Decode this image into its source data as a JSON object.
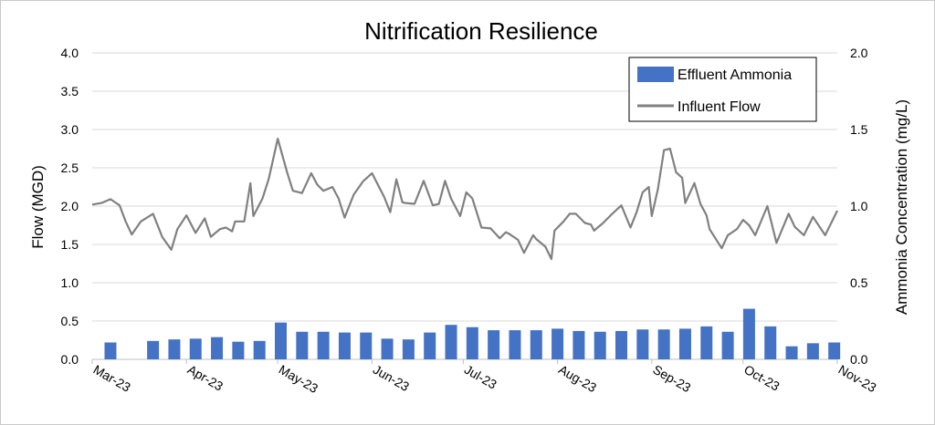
{
  "chart_data": {
    "type": "bar+line",
    "title": "Nitrification Resilience",
    "ylabel_left": "Flow (MGD)",
    "ylabel_right": "Ammonia Concentration (mg/L)",
    "ylim_left": [
      0,
      4.0
    ],
    "ylim_right": [
      0,
      2.0
    ],
    "yticks_left": [
      "0.0",
      "0.5",
      "1.0",
      "1.5",
      "2.0",
      "2.5",
      "3.0",
      "3.5",
      "4.0"
    ],
    "yticks_right": [
      "0.0",
      "0.5",
      "1.0",
      "1.5",
      "2.0"
    ],
    "x_ticks": [
      "Mar-23",
      "Apr-23",
      "May-23",
      "Jun-23",
      "Jul-23",
      "Aug-23",
      "Sep-23",
      "Oct-23",
      "Nov-23"
    ],
    "grid": true,
    "legend_position": "top-right",
    "colors": {
      "bar": "#4472C4",
      "line": "#808080",
      "grid": "#d9d9d9"
    },
    "series": [
      {
        "name": "Effluent Ammonia",
        "type": "bar",
        "axis": "right",
        "x": [
          "2023-03-07",
          "2023-03-21",
          "2023-03-28",
          "2023-04-04",
          "2023-04-11",
          "2023-04-18",
          "2023-04-25",
          "2023-05-02",
          "2023-05-09",
          "2023-05-16",
          "2023-05-23",
          "2023-05-30",
          "2023-06-06",
          "2023-06-13",
          "2023-06-20",
          "2023-06-27",
          "2023-07-04",
          "2023-07-11",
          "2023-07-18",
          "2023-07-25",
          "2023-08-01",
          "2023-08-08",
          "2023-08-15",
          "2023-08-22",
          "2023-08-29",
          "2023-09-05",
          "2023-09-12",
          "2023-09-19",
          "2023-09-26",
          "2023-10-03",
          "2023-10-10",
          "2023-10-17",
          "2023-10-24",
          "2023-10-31"
        ],
        "values": [
          0.11,
          0.12,
          0.13,
          0.135,
          0.145,
          0.115,
          0.12,
          0.24,
          0.18,
          0.18,
          0.175,
          0.175,
          0.135,
          0.13,
          0.175,
          0.225,
          0.21,
          0.19,
          0.19,
          0.19,
          0.2,
          0.185,
          0.18,
          0.185,
          0.195,
          0.195,
          0.2,
          0.215,
          0.18,
          0.33,
          0.215,
          0.085,
          0.105,
          0.11
        ]
      },
      {
        "name": "Influent Flow",
        "type": "line",
        "axis": "left",
        "x": [
          "2023-03-01",
          "2023-03-04",
          "2023-03-07",
          "2023-03-10",
          "2023-03-12",
          "2023-03-14",
          "2023-03-17",
          "2023-03-21",
          "2023-03-24",
          "2023-03-27",
          "2023-03-29",
          "2023-04-01",
          "2023-04-04",
          "2023-04-07",
          "2023-04-09",
          "2023-04-12",
          "2023-04-14",
          "2023-04-16",
          "2023-04-17",
          "2023-04-20",
          "2023-04-22",
          "2023-04-23",
          "2023-04-26",
          "2023-04-28",
          "2023-05-01",
          "2023-05-04",
          "2023-05-06",
          "2023-05-09",
          "2023-05-12",
          "2023-05-14",
          "2023-05-16",
          "2023-05-19",
          "2023-05-21",
          "2023-05-23",
          "2023-05-26",
          "2023-05-29",
          "2023-06-01",
          "2023-06-05",
          "2023-06-07",
          "2023-06-09",
          "2023-06-11",
          "2023-06-12",
          "2023-06-15",
          "2023-06-18",
          "2023-06-21",
          "2023-06-23",
          "2023-06-25",
          "2023-06-27",
          "2023-06-30",
          "2023-07-02",
          "2023-07-04",
          "2023-07-07",
          "2023-07-10",
          "2023-07-13",
          "2023-07-15",
          "2023-07-16",
          "2023-07-19",
          "2023-07-21",
          "2023-07-24",
          "2023-07-25",
          "2023-07-28",
          "2023-07-30",
          "2023-07-31",
          "2023-08-03",
          "2023-08-05",
          "2023-08-07",
          "2023-08-10",
          "2023-08-12",
          "2023-08-13",
          "2023-08-16",
          "2023-08-19",
          "2023-08-22",
          "2023-08-25",
          "2023-08-27",
          "2023-08-29",
          "2023-08-31",
          "2023-09-01",
          "2023-09-03",
          "2023-09-05",
          "2023-09-07",
          "2023-09-09",
          "2023-09-11",
          "2023-09-12",
          "2023-09-15",
          "2023-09-17",
          "2023-09-19",
          "2023-09-20",
          "2023-09-24",
          "2023-09-26",
          "2023-09-29",
          "2023-10-01",
          "2023-10-03",
          "2023-10-05",
          "2023-10-09",
          "2023-10-12",
          "2023-10-16",
          "2023-10-18",
          "2023-10-21",
          "2023-10-24",
          "2023-10-28",
          "2023-11-01"
        ],
        "values": [
          2.02,
          2.04,
          2.09,
          2.01,
          1.8,
          1.63,
          1.8,
          1.9,
          1.6,
          1.43,
          1.7,
          1.88,
          1.65,
          1.84,
          1.6,
          1.7,
          1.72,
          1.67,
          1.8,
          1.8,
          2.3,
          1.87,
          2.1,
          2.35,
          2.88,
          2.45,
          2.2,
          2.17,
          2.43,
          2.28,
          2.2,
          2.25,
          2.1,
          1.85,
          2.15,
          2.32,
          2.43,
          2.12,
          1.92,
          2.35,
          2.05,
          2.04,
          2.03,
          2.33,
          2.01,
          2.03,
          2.33,
          2.1,
          1.87,
          2.18,
          2.1,
          1.72,
          1.71,
          1.58,
          1.66,
          1.64,
          1.56,
          1.39,
          1.62,
          1.57,
          1.47,
          1.31,
          1.68,
          1.8,
          1.9,
          1.9,
          1.78,
          1.76,
          1.68,
          1.78,
          1.9,
          2.01,
          1.72,
          1.92,
          2.18,
          2.25,
          1.87,
          2.22,
          2.73,
          2.75,
          2.44,
          2.37,
          2.04,
          2.3,
          2.03,
          1.88,
          1.7,
          1.45,
          1.62,
          1.7,
          1.82,
          1.75,
          1.62,
          2.0,
          1.52,
          1.9,
          1.73,
          1.62,
          1.86,
          1.62,
          1.94
        ]
      }
    ]
  }
}
